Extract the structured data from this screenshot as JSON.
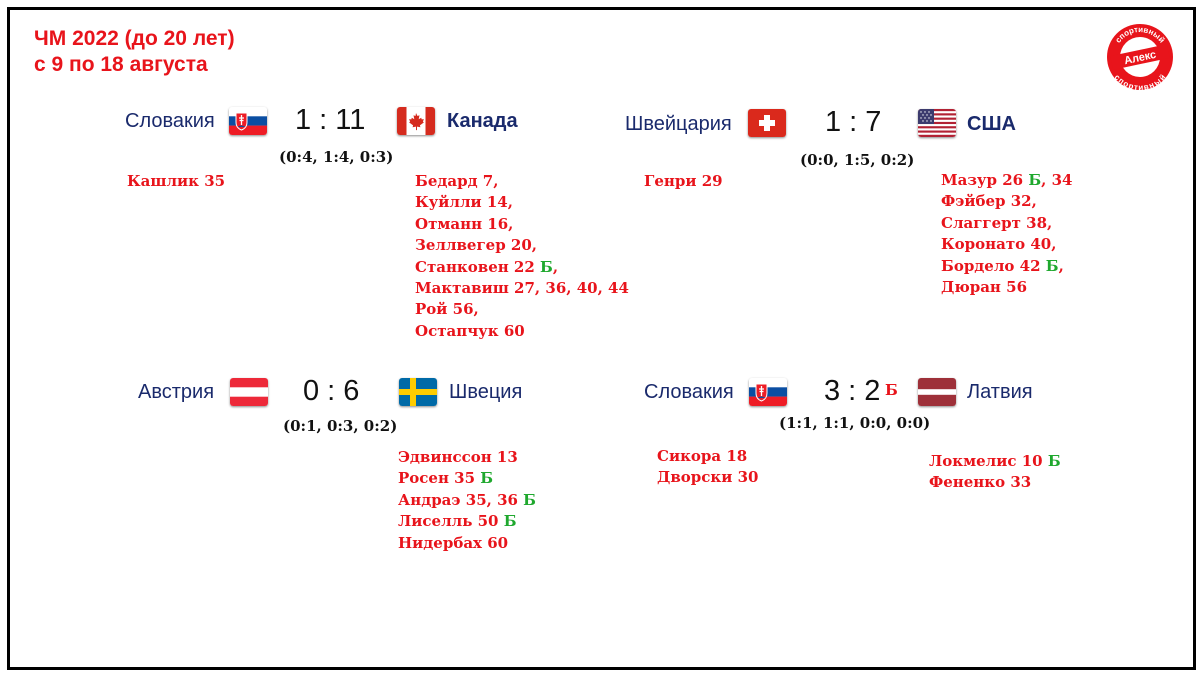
{
  "header": {
    "line1": "ЧМ 2022 (до 20 лет)",
    "line2": "с 9 по 18 августа"
  },
  "logo": {
    "text_top": "спортивный",
    "text_mid": "Алекс",
    "text_bottom": "спортивный",
    "icon": "round-stamp-logo"
  },
  "colors": {
    "accent_red": "#e8141b",
    "bonus_green": "#1fa82e",
    "team_blue": "#1a2a6c"
  },
  "matches": [
    {
      "home": "Словакия",
      "away": "Канада",
      "score": "1 : 11",
      "periods": "(0:4, 1:4, 0:3)",
      "home_flag": "slovakia-flag",
      "away_flag": "canada-flag",
      "home_scorers": [
        {
          "text": "Кашлик 35",
          "b": "",
          "after": ""
        }
      ],
      "away_scorers": [
        {
          "text": "Бедард 7,",
          "b": "",
          "after": ""
        },
        {
          "text": "Куйлли 14,",
          "b": "",
          "after": ""
        },
        {
          "text": "Отманн 16,",
          "b": "",
          "after": ""
        },
        {
          "text": "Зеллвегер 20,",
          "b": "",
          "after": ""
        },
        {
          "text": "Станковен 22 ",
          "b": "Б",
          "after": ","
        },
        {
          "text": "Мактавиш 27, 36, 40, 44",
          "b": "",
          "after": ""
        },
        {
          "text": "Рой 56,",
          "b": "",
          "after": ""
        },
        {
          "text": "Остапчук 60",
          "b": "",
          "after": ""
        }
      ]
    },
    {
      "home": "Швейцария",
      "away": "США",
      "score": "1 : 7",
      "periods": "(0:0, 1:5, 0:2)",
      "home_flag": "switzerland-flag",
      "away_flag": "usa-flag",
      "home_scorers": [
        {
          "text": "Генри 29",
          "b": "",
          "after": ""
        }
      ],
      "away_scorers": [
        {
          "text": "Мазур 26 ",
          "b": "Б",
          "after": ", 34"
        },
        {
          "text": "Фэйбер 32,",
          "b": "",
          "after": ""
        },
        {
          "text": "Слаггерт 38,",
          "b": "",
          "after": ""
        },
        {
          "text": "Коронато 40,",
          "b": "",
          "after": ""
        },
        {
          "text": "Бордело 42 ",
          "b": "Б",
          "after": ","
        },
        {
          "text": "Дюран 56",
          "b": "",
          "after": ""
        }
      ]
    },
    {
      "home": "Австрия",
      "away": "Швеция",
      "score": "0 : 6",
      "periods": "(0:1, 0:3, 0:2)",
      "home_flag": "austria-flag",
      "away_flag": "sweden-flag",
      "home_scorers": [],
      "away_scorers": [
        {
          "text": "Эдвинссон 13",
          "b": "",
          "after": ""
        },
        {
          "text": "Росен 35 ",
          "b": "Б",
          "after": ""
        },
        {
          "text": "Андраэ 35, 36 ",
          "b": "Б",
          "after": ""
        },
        {
          "text": "Лиселль 50 ",
          "b": "Б",
          "after": ""
        },
        {
          "text": "Нидербах 60",
          "b": "",
          "after": ""
        }
      ]
    },
    {
      "home": "Словакия",
      "away": "Латвия",
      "score": "3 : 2",
      "score_suffix": "Б",
      "periods": "(1:1, 1:1, 0:0, 0:0)",
      "home_flag": "slovakia-flag",
      "away_flag": "latvia-flag",
      "home_scorers": [
        {
          "text": "Сикора 18",
          "b": "",
          "after": ""
        },
        {
          "text": "Дворски 30",
          "b": "",
          "after": ""
        }
      ],
      "away_scorers": [
        {
          "text": "Локмелис 10 ",
          "b": "Б",
          "after": ""
        },
        {
          "text": "Фененко 33",
          "b": "",
          "after": ""
        }
      ]
    }
  ]
}
